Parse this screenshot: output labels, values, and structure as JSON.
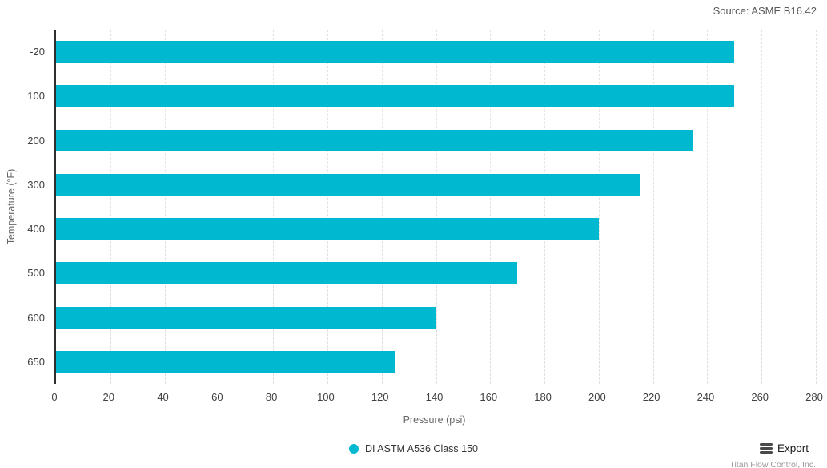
{
  "header": {
    "source_label": "Source: ASME B16.42"
  },
  "chart_data": {
    "type": "bar",
    "orientation": "horizontal",
    "title": "",
    "categories": [
      "-20",
      "100",
      "200",
      "300",
      "400",
      "500",
      "600",
      "650"
    ],
    "series": [
      {
        "name": "DI ASTM A536 Class 150",
        "values": [
          250,
          250,
          235,
          215,
          200,
          170,
          140,
          125
        ]
      }
    ],
    "xlabel": "Pressure (psi)",
    "ylabel": "Temperature (°F)",
    "xlim": [
      0,
      280
    ],
    "xticks": [
      0,
      20,
      40,
      60,
      80,
      100,
      120,
      140,
      160,
      180,
      200,
      220,
      240,
      260,
      280
    ],
    "grid": "vertical-dashed",
    "legend_position": "bottom-center",
    "bar_color": "#00b9d1"
  },
  "legend": {
    "items": [
      {
        "label": "DI ASTM A536 Class 150",
        "color": "#00b9d1"
      }
    ]
  },
  "footer": {
    "export_label": "Export",
    "attribution": "Titan Flow Control, Inc."
  },
  "colors": {
    "bar": "#00b9d1",
    "axis_line": "#2f2f2f",
    "gridline": "#e0e0e0",
    "tick_text": "#404040",
    "axis_title_text": "#666666",
    "source_text": "#595959"
  }
}
